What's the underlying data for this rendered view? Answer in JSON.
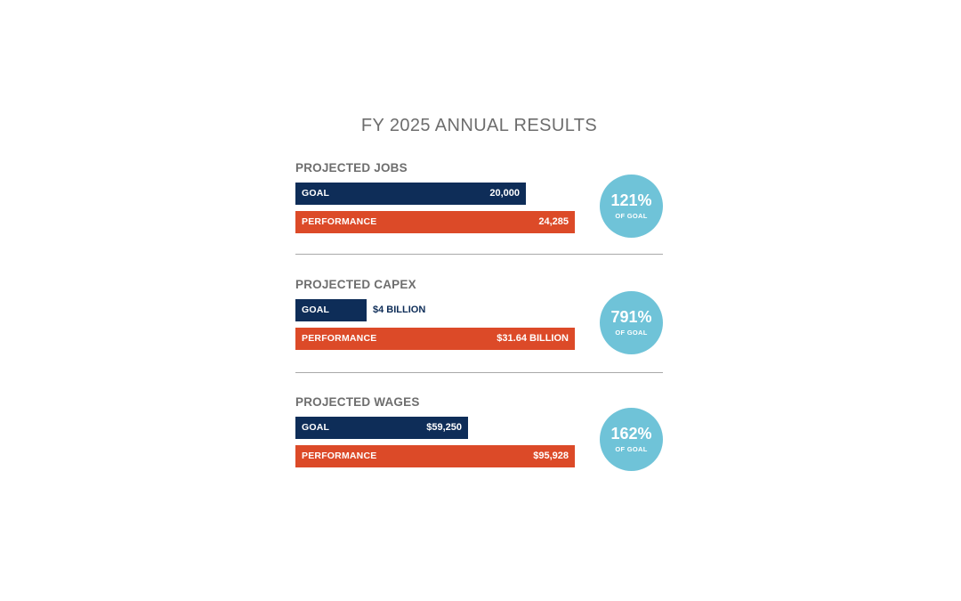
{
  "header": {
    "title": "FY 2025 ANNUAL RESULTS"
  },
  "colors": {
    "goal": "#0e2d58",
    "performance": "#dc4a28",
    "badge": "#6fc3d8"
  },
  "chart_data": {
    "type": "bar",
    "orientation": "horizontal",
    "title": "FY 2025 ANNUAL RESULTS",
    "groups": [
      {
        "title": "PROJECTED JOBS",
        "goal": {
          "label": "GOAL",
          "value": 20000,
          "display": "20,000"
        },
        "performance": {
          "label": "PERFORMANCE",
          "value": 24285,
          "display": "24,285"
        },
        "percent": "121%",
        "percent_label": "OF GOAL"
      },
      {
        "title": "PROJECTED CAPEX",
        "goal": {
          "label": "GOAL",
          "value": 4,
          "display": "$4 BILLION"
        },
        "performance": {
          "label": "PERFORMANCE",
          "value": 31.64,
          "display": "$31.64 BILLION"
        },
        "percent": "791%",
        "percent_label": "OF GOAL"
      },
      {
        "title": "PROJECTED WAGES",
        "goal": {
          "label": "GOAL",
          "value": 59250,
          "display": "$59,250"
        },
        "performance": {
          "label": "PERFORMANCE",
          "value": 95928,
          "display": "$95,928"
        },
        "percent": "162%",
        "percent_label": "OF GOAL"
      }
    ]
  }
}
